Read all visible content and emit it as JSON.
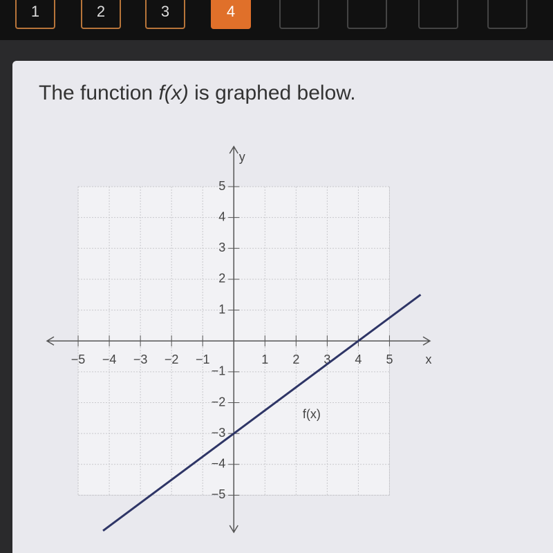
{
  "nav": {
    "buttons": [
      "1",
      "2",
      "3",
      "4"
    ]
  },
  "question": {
    "before": "The function ",
    "function": "f(x)",
    "after": " is graphed below."
  },
  "graph": {
    "x_label": "x",
    "y_label": "y",
    "xlim": [
      -6,
      6.3
    ],
    "ylim": [
      -6.2,
      6.3
    ],
    "xticks": [
      {
        "value": -5,
        "label": "−5"
      },
      {
        "value": -4,
        "label": "−4"
      },
      {
        "value": -3,
        "label": "−3"
      },
      {
        "value": -2,
        "label": "−2"
      },
      {
        "value": -1,
        "label": "−1"
      },
      1,
      2,
      3,
      4,
      5
    ],
    "yticks": [
      {
        "value": -5,
        "label": "−5"
      },
      {
        "value": -4,
        "label": "−4"
      },
      {
        "value": -3,
        "label": "−3"
      },
      {
        "value": -2,
        "label": "−2"
      },
      {
        "value": -1,
        "label": "−1"
      },
      1,
      2,
      3,
      4,
      5
    ],
    "line": {
      "name": "f(x)",
      "color": "#2e3566",
      "x": [
        -4.2,
        0,
        4,
        6
      ],
      "y": [
        -6.15,
        -3,
        0,
        1.5
      ]
    }
  }
}
